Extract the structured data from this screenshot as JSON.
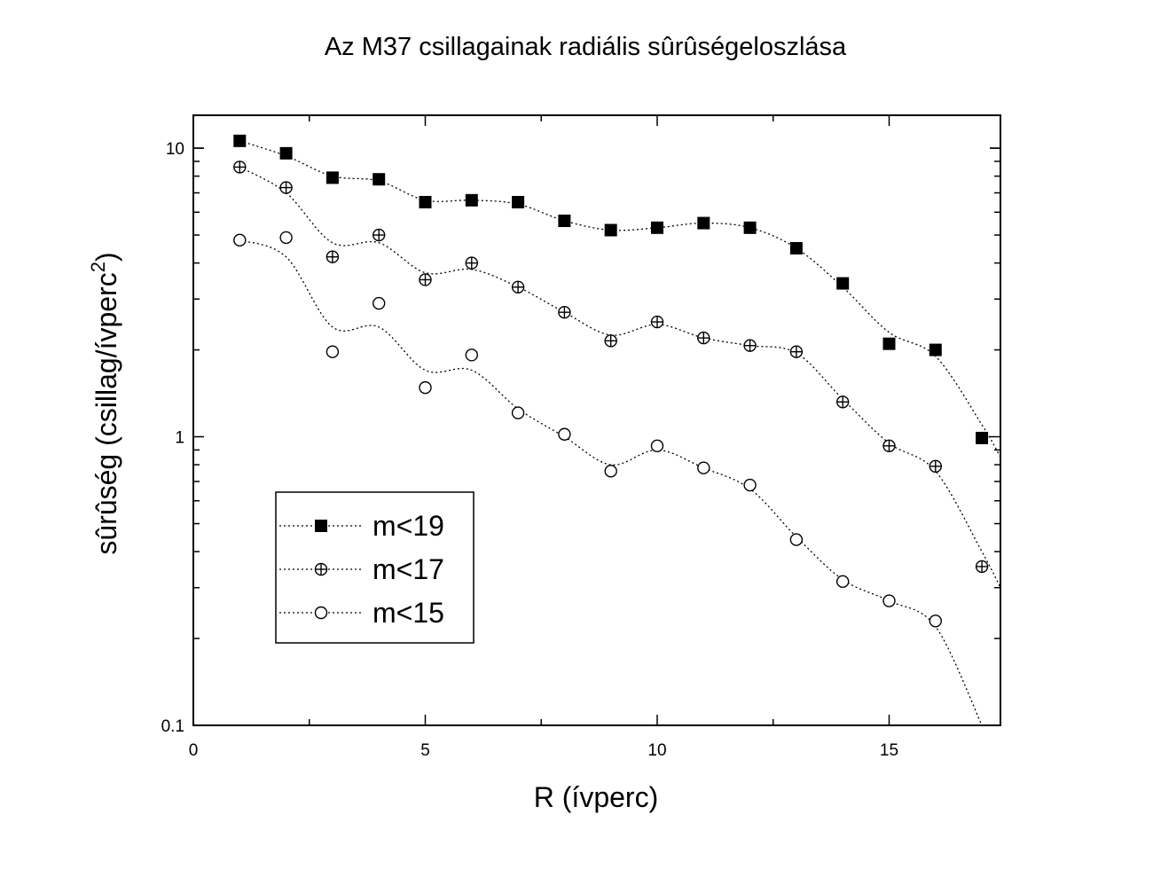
{
  "chart_data": {
    "type": "scatter",
    "title": "Az M37 csillagainak radiális sûrûségeloszlása",
    "xlabel": "R (ívperc)",
    "ylabel_main": "sûrûség (csillag/ívperc",
    "ylabel_sup": "2",
    "ylabel_close": ")",
    "xlim": [
      0,
      17.4
    ],
    "ylim": [
      0.1,
      13
    ],
    "yscale": "log",
    "xticks": [
      0,
      5,
      10,
      15
    ],
    "xtick_labels": [
      "0",
      "5",
      "10",
      "15"
    ],
    "yticks": [
      0.1,
      1,
      10
    ],
    "ytick_labels": [
      "0.1",
      "1",
      "10"
    ],
    "legend_position": "lower-left",
    "series": [
      {
        "name": "m<19",
        "marker": "filled-square",
        "x": [
          1,
          2,
          3,
          4,
          5,
          6,
          7,
          8,
          9,
          10,
          11,
          12,
          13,
          14,
          15,
          16,
          17
        ],
        "y": [
          10.6,
          9.6,
          7.9,
          7.8,
          6.5,
          6.6,
          6.5,
          5.6,
          5.2,
          5.3,
          5.5,
          5.3,
          4.5,
          3.4,
          2.1,
          2.0,
          0.99
        ]
      },
      {
        "name": "m<17",
        "marker": "circle-plus",
        "x": [
          1,
          2,
          3,
          4,
          5,
          6,
          7,
          8,
          9,
          10,
          11,
          12,
          13,
          14,
          15,
          16,
          17
        ],
        "y": [
          8.6,
          7.3,
          4.2,
          5.0,
          3.5,
          4.0,
          3.3,
          2.7,
          2.15,
          2.5,
          2.2,
          2.07,
          1.97,
          1.32,
          0.93,
          0.79,
          0.355
        ]
      },
      {
        "name": "m<15",
        "marker": "open-circle",
        "x": [
          1,
          2,
          3,
          4,
          5,
          6,
          7,
          8,
          9,
          10,
          11,
          12,
          13,
          14,
          15,
          16
        ],
        "y": [
          4.8,
          4.9,
          1.97,
          2.9,
          1.48,
          1.92,
          1.21,
          1.02,
          0.76,
          0.93,
          0.78,
          0.68,
          0.44,
          0.315,
          0.27,
          0.23
        ]
      }
    ],
    "trend_lines": [
      [
        [
          1,
          10.6
        ],
        [
          2,
          9.4
        ],
        [
          3,
          8.0
        ],
        [
          4,
          7.7
        ],
        [
          5,
          6.6
        ],
        [
          6,
          6.6
        ],
        [
          7,
          6.4
        ],
        [
          8,
          5.6
        ],
        [
          9,
          5.2
        ],
        [
          10,
          5.3
        ],
        [
          11,
          5.5
        ],
        [
          12,
          5.3
        ],
        [
          13,
          4.5
        ],
        [
          14,
          3.3
        ],
        [
          15,
          2.3
        ],
        [
          16,
          1.9
        ],
        [
          17,
          1.1
        ],
        [
          17.4,
          0.85
        ]
      ],
      [
        [
          1,
          8.6
        ],
        [
          2,
          7.0
        ],
        [
          3,
          4.7
        ],
        [
          4,
          4.7
        ],
        [
          5,
          3.7
        ],
        [
          6,
          3.8
        ],
        [
          7,
          3.3
        ],
        [
          8,
          2.7
        ],
        [
          9,
          2.25
        ],
        [
          10,
          2.45
        ],
        [
          11,
          2.2
        ],
        [
          12,
          2.07
        ],
        [
          13,
          1.95
        ],
        [
          14,
          1.35
        ],
        [
          15,
          0.95
        ],
        [
          16,
          0.76
        ],
        [
          17,
          0.4
        ],
        [
          17.4,
          0.3
        ]
      ],
      [
        [
          1,
          4.8
        ],
        [
          2,
          4.2
        ],
        [
          3,
          2.4
        ],
        [
          4,
          2.4
        ],
        [
          5,
          1.7
        ],
        [
          6,
          1.7
        ],
        [
          7,
          1.25
        ],
        [
          8,
          1.0
        ],
        [
          9,
          0.8
        ],
        [
          10,
          0.9
        ],
        [
          11,
          0.78
        ],
        [
          12,
          0.66
        ],
        [
          13,
          0.45
        ],
        [
          14,
          0.32
        ],
        [
          15,
          0.27
        ],
        [
          16,
          0.22
        ],
        [
          17,
          0.1
        ]
      ]
    ]
  }
}
